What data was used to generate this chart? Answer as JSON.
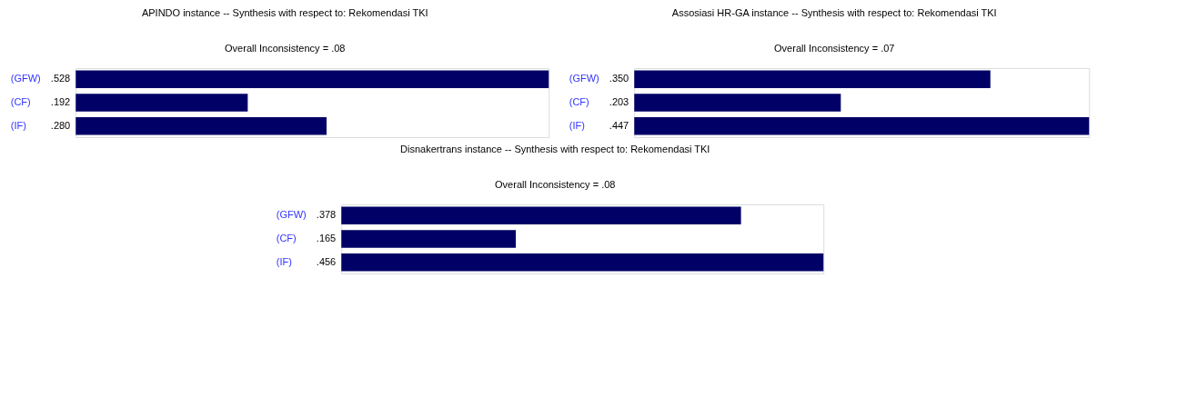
{
  "chart_data": [
    {
      "type": "bar",
      "orientation": "horizontal",
      "title": "APINDO instance -- Synthesis with respect to: Rekomendasi TKI",
      "subtitle": "Overall Inconsistency = .08",
      "categories": [
        "(GFW)",
        "(CF)",
        "(IF)"
      ],
      "values": [
        0.528,
        0.192,
        0.28
      ],
      "value_labels": [
        ".528",
        ".192",
        ".280"
      ],
      "color": "#000066",
      "grid": false
    },
    {
      "type": "bar",
      "orientation": "horizontal",
      "title": "Assosiasi HR-GA instance -- Synthesis with respect to: Rekomendasi TKI",
      "subtitle": "Overall Inconsistency = .07",
      "categories": [
        "(GFW)",
        "(CF)",
        "(IF)"
      ],
      "values": [
        0.35,
        0.203,
        0.447
      ],
      "value_labels": [
        ".350",
        ".203",
        ".447"
      ],
      "color": "#000066",
      "grid": false
    },
    {
      "type": "bar",
      "orientation": "horizontal",
      "title": "Disnakertrans instance -- Synthesis with respect to: Rekomendasi TKI",
      "subtitle": "Overall Inconsistency = .08",
      "categories": [
        "(GFW)",
        "(CF)",
        "(IF)"
      ],
      "values": [
        0.378,
        0.165,
        0.456
      ],
      "value_labels": [
        ".378",
        ".165",
        ".456"
      ],
      "color": "#000066",
      "grid": false
    }
  ]
}
